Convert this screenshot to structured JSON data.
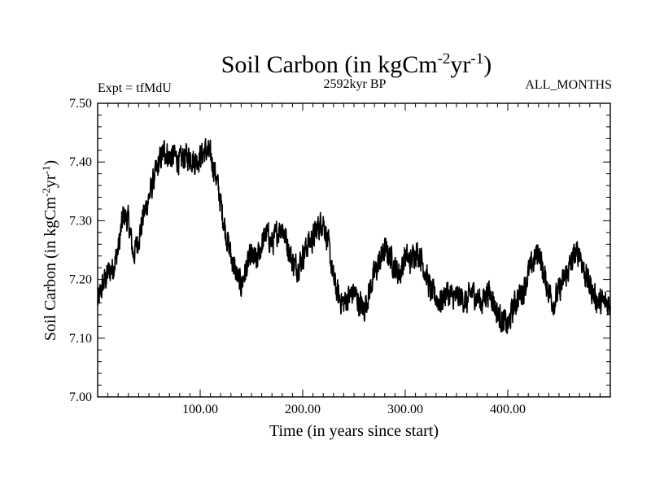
{
  "chart_data": {
    "type": "line",
    "title_main": "Soil Carbon (in kgCm",
    "title_sup1": "-2",
    "title_mid": "yr",
    "title_sup2": "-1",
    "title_end": ")",
    "subtitle_left": "Expt = tfMdU",
    "subtitle_center": "2592kyr BP",
    "subtitle_right": "ALL_MONTHS",
    "xlabel": "Time (in years since start)",
    "ylabel_main": "Soil Carbon (in kgCm",
    "ylabel_sup1": "-2",
    "ylabel_mid": "yr",
    "ylabel_sup2": "-1",
    "ylabel_end": ")",
    "xlim": [
      0,
      500
    ],
    "ylim": [
      7.0,
      7.5
    ],
    "x_ticks": [
      100,
      200,
      300,
      400
    ],
    "x_tick_labels": [
      "100.00",
      "200.00",
      "300.00",
      "400.00"
    ],
    "y_ticks": [
      7.0,
      7.1,
      7.2,
      7.3,
      7.4,
      7.5
    ],
    "y_tick_labels": [
      "7.00",
      "7.10",
      "7.20",
      "7.30",
      "7.40",
      "7.50"
    ],
    "series": [
      {
        "name": "Soil Carbon",
        "color": "#000000",
        "trend": {
          "x": [
            0,
            5,
            10,
            15,
            20,
            25,
            30,
            35,
            40,
            45,
            50,
            55,
            60,
            65,
            70,
            75,
            80,
            85,
            90,
            95,
            100,
            105,
            110,
            115,
            120,
            125,
            130,
            135,
            140,
            145,
            150,
            155,
            160,
            165,
            170,
            175,
            180,
            185,
            190,
            195,
            200,
            205,
            210,
            215,
            220,
            225,
            230,
            235,
            240,
            245,
            250,
            255,
            260,
            265,
            270,
            275,
            280,
            285,
            290,
            295,
            300,
            305,
            310,
            315,
            320,
            325,
            330,
            335,
            340,
            345,
            350,
            355,
            360,
            365,
            370,
            375,
            380,
            385,
            390,
            395,
            400,
            405,
            410,
            415,
            420,
            425,
            430,
            435,
            440,
            445,
            450,
            455,
            460,
            465,
            470,
            475,
            480,
            485,
            490,
            495,
            500
          ],
          "y": [
            7.16,
            7.19,
            7.21,
            7.22,
            7.25,
            7.31,
            7.3,
            7.24,
            7.27,
            7.31,
            7.34,
            7.37,
            7.4,
            7.42,
            7.41,
            7.41,
            7.4,
            7.41,
            7.41,
            7.4,
            7.41,
            7.42,
            7.41,
            7.38,
            7.33,
            7.28,
            7.24,
            7.21,
            7.19,
            7.22,
            7.24,
            7.23,
            7.26,
            7.28,
            7.26,
            7.28,
            7.29,
            7.26,
            7.23,
            7.22,
            7.24,
            7.26,
            7.27,
            7.29,
            7.3,
            7.26,
            7.2,
            7.17,
            7.16,
            7.17,
            7.18,
            7.16,
            7.15,
            7.18,
            7.21,
            7.23,
            7.25,
            7.24,
            7.22,
            7.21,
            7.24,
            7.23,
            7.25,
            7.24,
            7.21,
            7.18,
            7.17,
            7.16,
            7.18,
            7.17,
            7.17,
            7.17,
            7.16,
            7.18,
            7.17,
            7.16,
            7.18,
            7.17,
            7.14,
            7.13,
            7.12,
            7.15,
            7.17,
            7.18,
            7.21,
            7.23,
            7.25,
            7.21,
            7.18,
            7.16,
            7.18,
            7.2,
            7.22,
            7.24,
            7.25,
            7.21,
            7.19,
            7.17,
            7.16,
            7.16,
            7.16
          ]
        },
        "noise_amplitude": 0.025
      }
    ]
  }
}
